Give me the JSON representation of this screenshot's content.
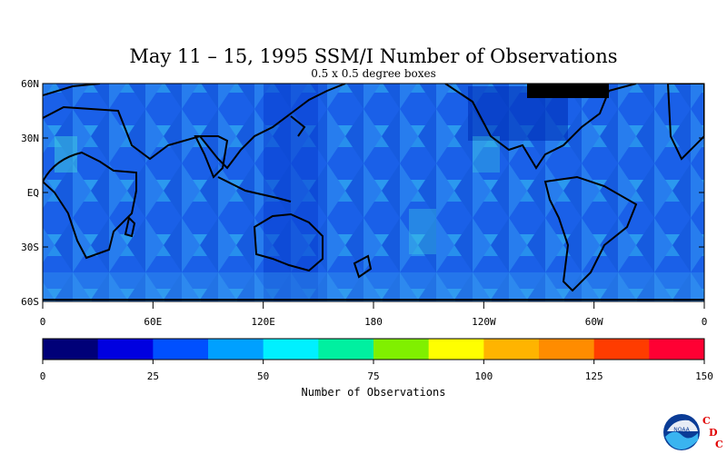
{
  "title": "May 11 – 15, 1995 SSM/I Number of Observations",
  "subtitle": "0.5 x 0.5 degree boxes",
  "map": {
    "lat_labels": [
      "60N",
      "30N",
      "EQ",
      "30S",
      "60S"
    ],
    "lon_labels": [
      "0",
      "60E",
      "120E",
      "180",
      "120W",
      "60W",
      "0"
    ],
    "lat_range": [
      "60S",
      "60N"
    ],
    "lon_range": [
      0,
      360
    ],
    "land_outline_color": "#000000"
  },
  "colorbar": {
    "label": "Number of Observations",
    "ticks": [
      "0",
      "25",
      "50",
      "75",
      "100",
      "125",
      "150"
    ],
    "range": [
      0,
      150
    ],
    "colors": [
      "#000078",
      "#0000e0",
      "#0050ff",
      "#00a0ff",
      "#00f0ff",
      "#00f0a0",
      "#80f000",
      "#ffff00",
      "#ffb400",
      "#ff8c00",
      "#ff3c00",
      "#ff0033"
    ]
  },
  "logo": {
    "noaa_text": "NOAA",
    "cdc_letters": [
      "C",
      "D",
      "C"
    ]
  }
}
